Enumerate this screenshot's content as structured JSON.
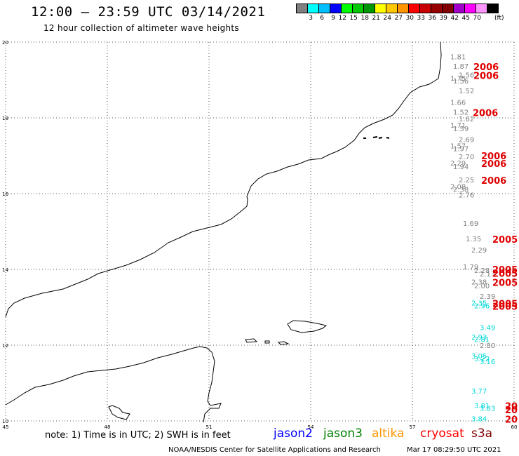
{
  "header": {
    "title": "12:00 – 23:59 UTC 03/14/2021",
    "subtitle": "12 hour collection of altimeter wave heights"
  },
  "colorbar": {
    "colors": [
      "#808080",
      "#00ffff",
      "#00c0ff",
      "#0000ff",
      "#00ff00",
      "#00c800",
      "#009600",
      "#ffff00",
      "#ffc800",
      "#ff9600",
      "#ff0000",
      "#c80000",
      "#960000",
      "#800000",
      "#a000c8",
      "#ff00ff",
      "#ff96ff",
      "#000000"
    ],
    "labels": [
      "3",
      "6",
      "9",
      "12",
      "15",
      "18",
      "21",
      "24",
      "27",
      "30",
      "33",
      "36",
      "39",
      "42",
      "45",
      "70"
    ],
    "unit": "(ft)"
  },
  "map": {
    "lon_labels": [
      "45",
      "48",
      "51",
      "54",
      "57",
      "60"
    ],
    "lat_labels": [
      "20",
      "18",
      "16",
      "14",
      "12",
      "10"
    ],
    "lon_range": [
      45,
      60
    ],
    "lat_range": [
      10,
      20
    ],
    "gridlines": "dotted",
    "coastline_color": "#000000"
  },
  "observations": [
    {
      "value": "1.81",
      "mission": "jason3",
      "lat": 19.6
    },
    {
      "value": "1.87",
      "mission": "jason3",
      "lat": 19.35
    },
    {
      "value": "1.56",
      "mission": "jason3",
      "lat": 19.12
    },
    {
      "value": "1.75",
      "mission": "jason3",
      "lat": 19.04
    },
    {
      "value": "1.56",
      "mission": "jason3",
      "lat": 18.96
    },
    {
      "value": "1.52",
      "mission": "jason3",
      "lat": 18.7
    },
    {
      "value": "1.66",
      "mission": "jason3",
      "lat": 18.4
    },
    {
      "value": "1.52",
      "mission": "jason3",
      "lat": 18.14
    },
    {
      "value": "1.62",
      "mission": "jason3",
      "lat": 17.96
    },
    {
      "value": "1.71",
      "mission": "jason3",
      "lat": 17.8
    },
    {
      "value": "1.59",
      "mission": "jason3",
      "lat": 17.7
    },
    {
      "value": "2.69",
      "mission": "jason3",
      "lat": 17.42
    },
    {
      "value": "1.57",
      "mission": "jason3",
      "lat": 17.25
    },
    {
      "value": "1.97",
      "mission": "jason3",
      "lat": 17.18
    },
    {
      "value": "2.70",
      "mission": "jason3",
      "lat": 16.96
    },
    {
      "value": "2.29",
      "mission": "jason3",
      "lat": 16.8
    },
    {
      "value": "1.94",
      "mission": "jason3",
      "lat": 16.7
    },
    {
      "value": "2.25",
      "mission": "jason3",
      "lat": 16.35
    },
    {
      "value": "2.08",
      "mission": "jason3",
      "lat": 16.18
    },
    {
      "value": "2.38",
      "mission": "jason3",
      "lat": 16.1
    },
    {
      "value": "2.76",
      "mission": "jason3",
      "lat": 15.95
    },
    {
      "value": "1.69",
      "mission": "jason3",
      "lat": 15.2
    },
    {
      "value": "1.35",
      "mission": "jason3",
      "lat": 14.8
    },
    {
      "value": "2.29",
      "mission": "jason3",
      "lat": 14.5
    },
    {
      "value": "1.79",
      "mission": "jason3",
      "lat": 14.06
    },
    {
      "value": "2.28",
      "mission": "jason3",
      "lat": 13.96
    },
    {
      "value": "2.13",
      "mission": "jason3",
      "lat": 13.87
    },
    {
      "value": "2.38",
      "mission": "jason3",
      "lat": 13.66
    },
    {
      "value": "2.00",
      "mission": "jason3",
      "lat": 13.56
    },
    {
      "value": "2.39",
      "mission": "jason3",
      "lat": 13.28
    },
    {
      "value": "2.35",
      "mission": "jason2",
      "lat": 13.1
    },
    {
      "value": "2.96",
      "mission": "jason2",
      "lat": 13.03
    },
    {
      "value": "3.49",
      "mission": "jason2",
      "lat": 12.45
    },
    {
      "value": "2.93",
      "mission": "jason2",
      "lat": 12.2
    },
    {
      "value": "2.81",
      "mission": "jason2",
      "lat": 12.14
    },
    {
      "value": "2.80",
      "mission": "jason3",
      "lat": 11.98
    },
    {
      "value": "3.05",
      "mission": "jason2",
      "lat": 11.7
    },
    {
      "value": "3.22",
      "mission": "jason2",
      "lat": 11.63
    },
    {
      "value": "3.16",
      "mission": "jason2",
      "lat": 11.56
    },
    {
      "value": "3.77",
      "mission": "jason2",
      "lat": 10.78
    },
    {
      "value": "3.81",
      "mission": "jason2",
      "lat": 10.4
    },
    {
      "value": "3.83",
      "mission": "jason2",
      "lat": 10.32
    },
    {
      "value": "3.84",
      "mission": "jason2",
      "lat": 10.05
    }
  ],
  "cryosat_labels": [
    {
      "text": "2006",
      "lat": 19.35
    },
    {
      "text": "2006",
      "lat": 19.12
    },
    {
      "text": "2006",
      "lat": 18.14
    },
    {
      "text": "2006",
      "lat": 17.0
    },
    {
      "text": "2006",
      "lat": 16.8
    },
    {
      "text": "2006",
      "lat": 16.35
    },
    {
      "text": "2005",
      "lat": 14.8
    },
    {
      "text": "2005",
      "lat": 14.0
    },
    {
      "text": "2005",
      "lat": 13.9
    },
    {
      "text": "2005",
      "lat": 13.66
    },
    {
      "text": "2005",
      "lat": 13.1
    },
    {
      "text": "2005",
      "lat": 13.03
    },
    {
      "text": "20",
      "lat": 10.4
    },
    {
      "text": "20",
      "lat": 10.3
    },
    {
      "text": "20",
      "lat": 10.05
    }
  ],
  "legend": {
    "note": "note: 1) Time is in UTC; 2) SWH is in feet",
    "missions": [
      {
        "name": "jason2",
        "color": "#0000ff"
      },
      {
        "name": "jason3",
        "color": "#008000"
      },
      {
        "name": "altika",
        "color": "#ff9600"
      },
      {
        "name": "cryosat",
        "color": "#ff0000"
      },
      {
        "name": "s3a",
        "color": "#800000"
      }
    ]
  },
  "footer": {
    "credit": "NOAA/NESDIS Center for Satellite Applications and Research",
    "timestamp": "Mar 17 08:29:50 UTC 2021"
  }
}
